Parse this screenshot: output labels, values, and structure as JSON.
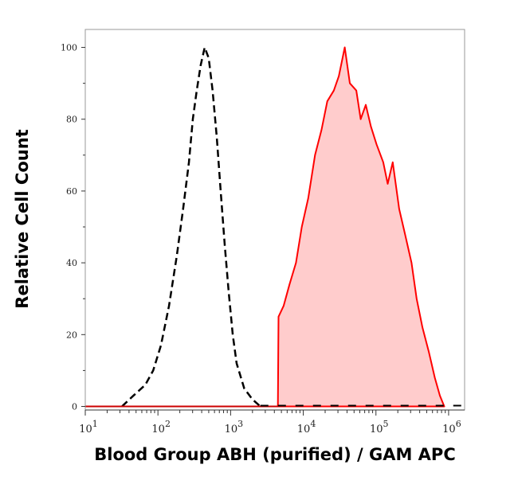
{
  "chart_data": {
    "type": "area",
    "title": "",
    "xlabel": "Blood Group ABH (purified) / GAM APC",
    "ylabel": "Relative Cell Count",
    "xscale": "log",
    "xlim": [
      10,
      1660000
    ],
    "ylim": [
      -1,
      105
    ],
    "grid": false,
    "legend": "none",
    "x_ticks": [
      10,
      100,
      1000,
      10000,
      100000,
      1000000
    ],
    "x_tick_labels": [
      {
        "base": "10",
        "exp": "1"
      },
      {
        "base": "10",
        "exp": "2"
      },
      {
        "base": "10",
        "exp": "3"
      },
      {
        "base": "10",
        "exp": "4"
      },
      {
        "base": "10",
        "exp": "5"
      },
      {
        "base": "10",
        "exp": "6"
      }
    ],
    "y_ticks": [
      0,
      20,
      40,
      60,
      80,
      100
    ],
    "y_tick_labels": [
      "0",
      "20",
      "40",
      "60",
      "80",
      "100"
    ],
    "series": [
      {
        "style": "dashed-line",
        "color": "#000000",
        "x": [
          32,
          46,
          67,
          86,
          110,
          142,
          182,
          222,
          267,
          302,
          342,
          387,
          440,
          500,
          565,
          645,
          730,
          830,
          940,
          1070,
          1210,
          1540,
          1990,
          2570
        ],
        "y": [
          0,
          3,
          6,
          10,
          17,
          28,
          42,
          55,
          68,
          80,
          88,
          95,
          100,
          97,
          88,
          75,
          60,
          45,
          32,
          20,
          12,
          5,
          2,
          0
        ]
      },
      {
        "style": "filled-area",
        "color": "#ff0000",
        "fill": "#ffcccc",
        "x": [
          4470,
          4570,
          5370,
          6460,
          7940,
          9550,
          11700,
          14500,
          17800,
          21400,
          26300,
          30900,
          37200,
          43700,
          53700,
          61700,
          72400,
          85100,
          102000,
          126000,
          145000,
          170000,
          209000,
          251000,
          309000,
          363000,
          437000,
          537000,
          646000,
          759000,
          871000
        ],
        "y": [
          0,
          25,
          28,
          34,
          40,
          50,
          58,
          70,
          77,
          85,
          88,
          92,
          100,
          90,
          88,
          80,
          84,
          78,
          73,
          68,
          62,
          68,
          55,
          48,
          40,
          30,
          22,
          15,
          8,
          3,
          0
        ]
      }
    ]
  }
}
